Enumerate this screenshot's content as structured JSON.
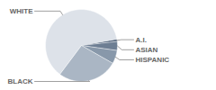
{
  "chart_data": {
    "type": "pie",
    "categories": [
      "A.I.",
      "ASIAN",
      "HISPANIC",
      "BLACK",
      "WHITE"
    ],
    "values": [
      1,
      4,
      6,
      27,
      62
    ],
    "colors": [
      "#4f6179",
      "#6d7e93",
      "#8898aa",
      "#aab6c4",
      "#dde2e9"
    ]
  }
}
